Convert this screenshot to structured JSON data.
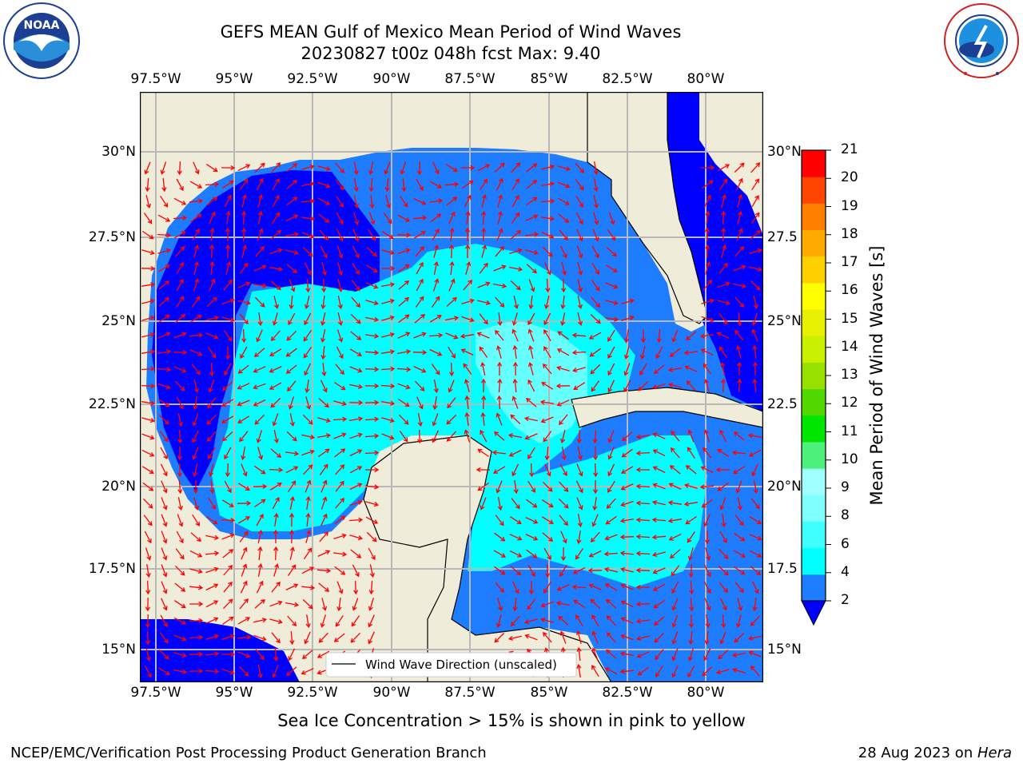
{
  "header": {
    "title_line1": "GEFS MEAN Gulf of Mexico Mean Period of Wind Waves",
    "title_line2": "20230827 t00z 048h fcst   Max: 9.40"
  },
  "logos": {
    "left": {
      "name": "NOAA",
      "ring_text": "NATIONAL OCEANIC AND ATMOSPHERIC ADMINISTRATION · U.S. DEPARTMENT OF COMMERCE"
    },
    "right": {
      "ring_text": "NATIONAL WEATHER SERVICE"
    }
  },
  "map": {
    "lon_labels": [
      "97.5°W",
      "95°W",
      "92.5°W",
      "90°W",
      "87.5°W",
      "85°W",
      "82.5°W",
      "80°W"
    ],
    "lat_labels_left": [
      "30°N",
      "27.5°N",
      "25°N",
      "22.5°N",
      "20°N",
      "17.5°N",
      "15°N"
    ],
    "lat_labels_right": [
      "30°N",
      "27.5",
      "25°N",
      "22.5",
      "20°N",
      "17.5",
      "15°N"
    ],
    "legend_text": "Wind Wave Direction (unscaled)",
    "colors": {
      "land": "#efedd9",
      "water_2_4": "#1e7dff",
      "water_lt2": "#0000ff",
      "water_4_6": "#00ffff",
      "water_6_8": "#66ffff",
      "arrow": "#ff0000"
    }
  },
  "colorbar": {
    "label": "Mean Period of Wind Waves [s]",
    "ticks": [
      "2",
      "4",
      "6",
      "8",
      "9",
      "10",
      "11",
      "12",
      "13",
      "14",
      "15",
      "16",
      "17",
      "18",
      "19",
      "20",
      "21"
    ],
    "colors": [
      "#1e7dff",
      "#00ffff",
      "#40ffff",
      "#80ffff",
      "#a0ffff",
      "#4cf07a",
      "#00e600",
      "#50d800",
      "#98e000",
      "#c8f000",
      "#e6f000",
      "#ffff00",
      "#ffd000",
      "#ffaa00",
      "#ff7f00",
      "#ff4500",
      "#ff0000"
    ],
    "extend_color": "#0000ff"
  },
  "notes": {
    "sea_ice": "Sea Ice Concentration > 15% is shown in pink to yellow"
  },
  "footer": {
    "left": "NCEP/EMC/Verification Post Processing Product Generation Branch",
    "date": "28 Aug 2023 on ",
    "machine": "Hera"
  }
}
